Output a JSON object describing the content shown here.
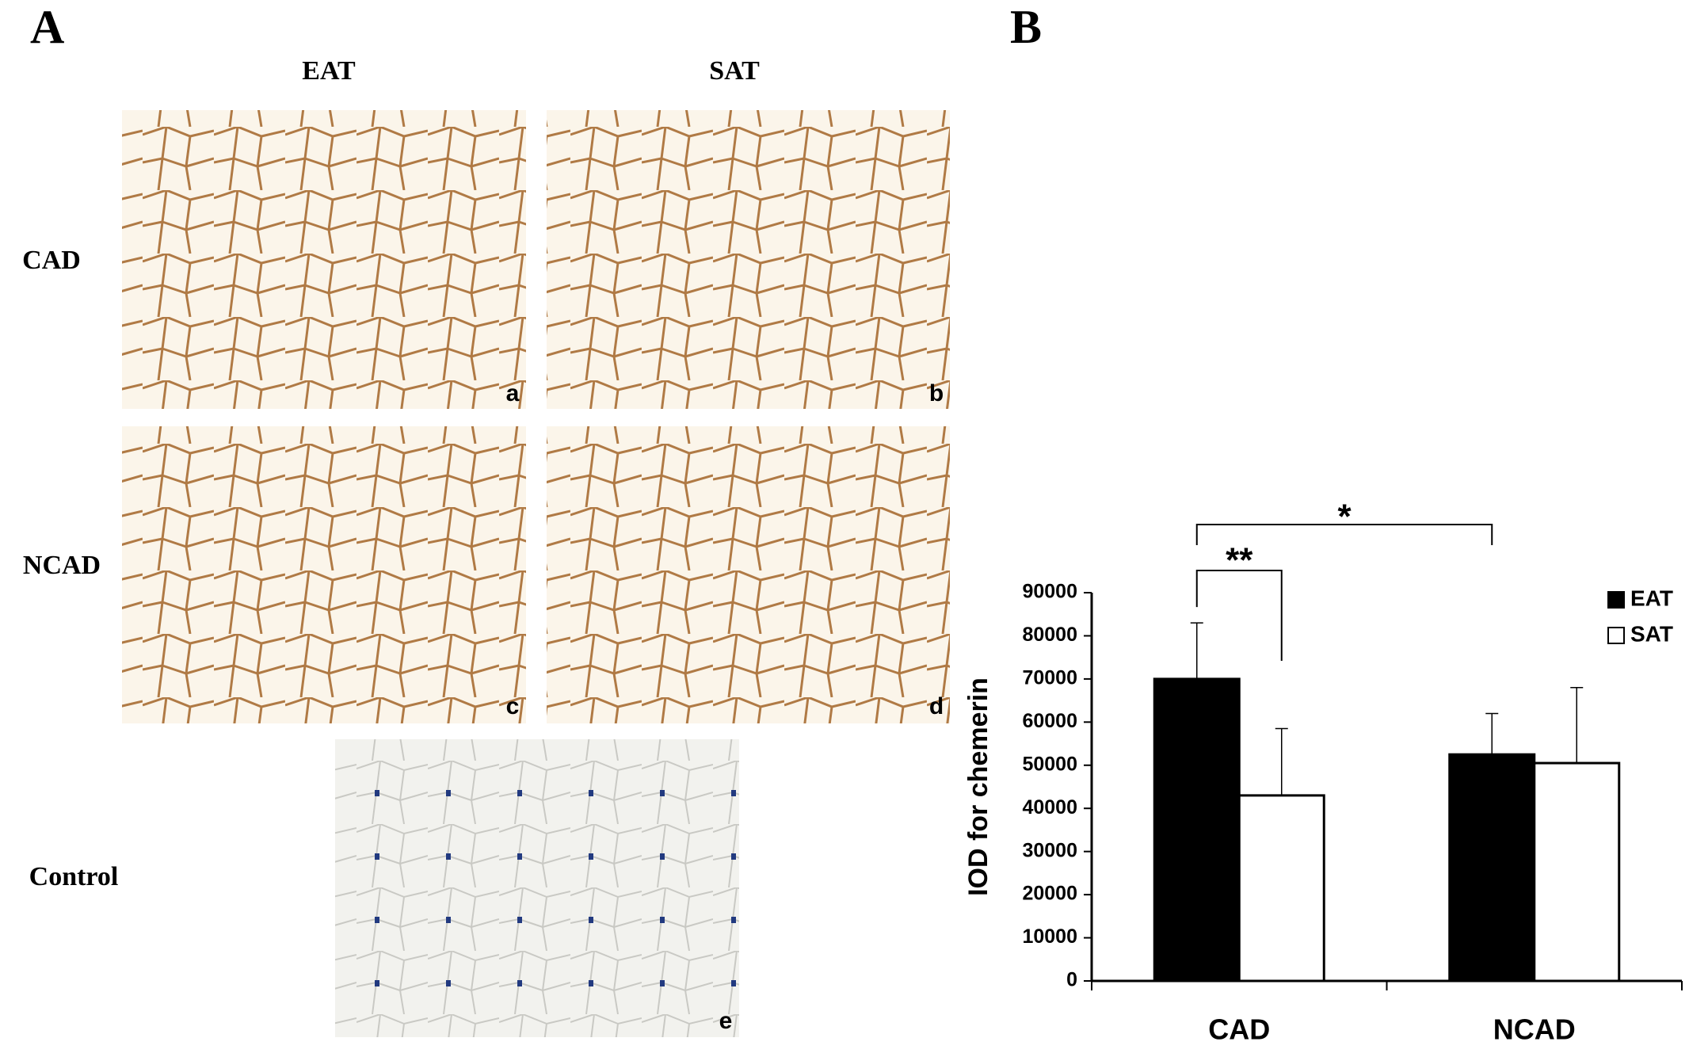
{
  "panel_a": {
    "letter": "A",
    "columns": [
      "EAT",
      "SAT"
    ],
    "rows": [
      "CAD",
      "NCAD",
      "Control"
    ],
    "image_labels": [
      "a",
      "b",
      "c",
      "d",
      "e"
    ]
  },
  "panel_b": {
    "letter": "B"
  },
  "chart_data": {
    "type": "bar",
    "y_label": "IOD for chemerin",
    "categories": [
      "CAD",
      "NCAD"
    ],
    "series": [
      {
        "name": "EAT",
        "color": "#000000",
        "values": [
          70000,
          52500
        ],
        "errors": [
          13000,
          9500
        ]
      },
      {
        "name": "SAT",
        "color": "#ffffff",
        "values": [
          43000,
          50500
        ],
        "errors": [
          15500,
          17500
        ]
      }
    ],
    "ylim": [
      0,
      90000
    ],
    "yticks": [
      0,
      10000,
      20000,
      30000,
      40000,
      50000,
      60000,
      70000,
      80000,
      90000
    ],
    "annotations": [
      "**",
      "*"
    ],
    "legend": "upper right"
  }
}
